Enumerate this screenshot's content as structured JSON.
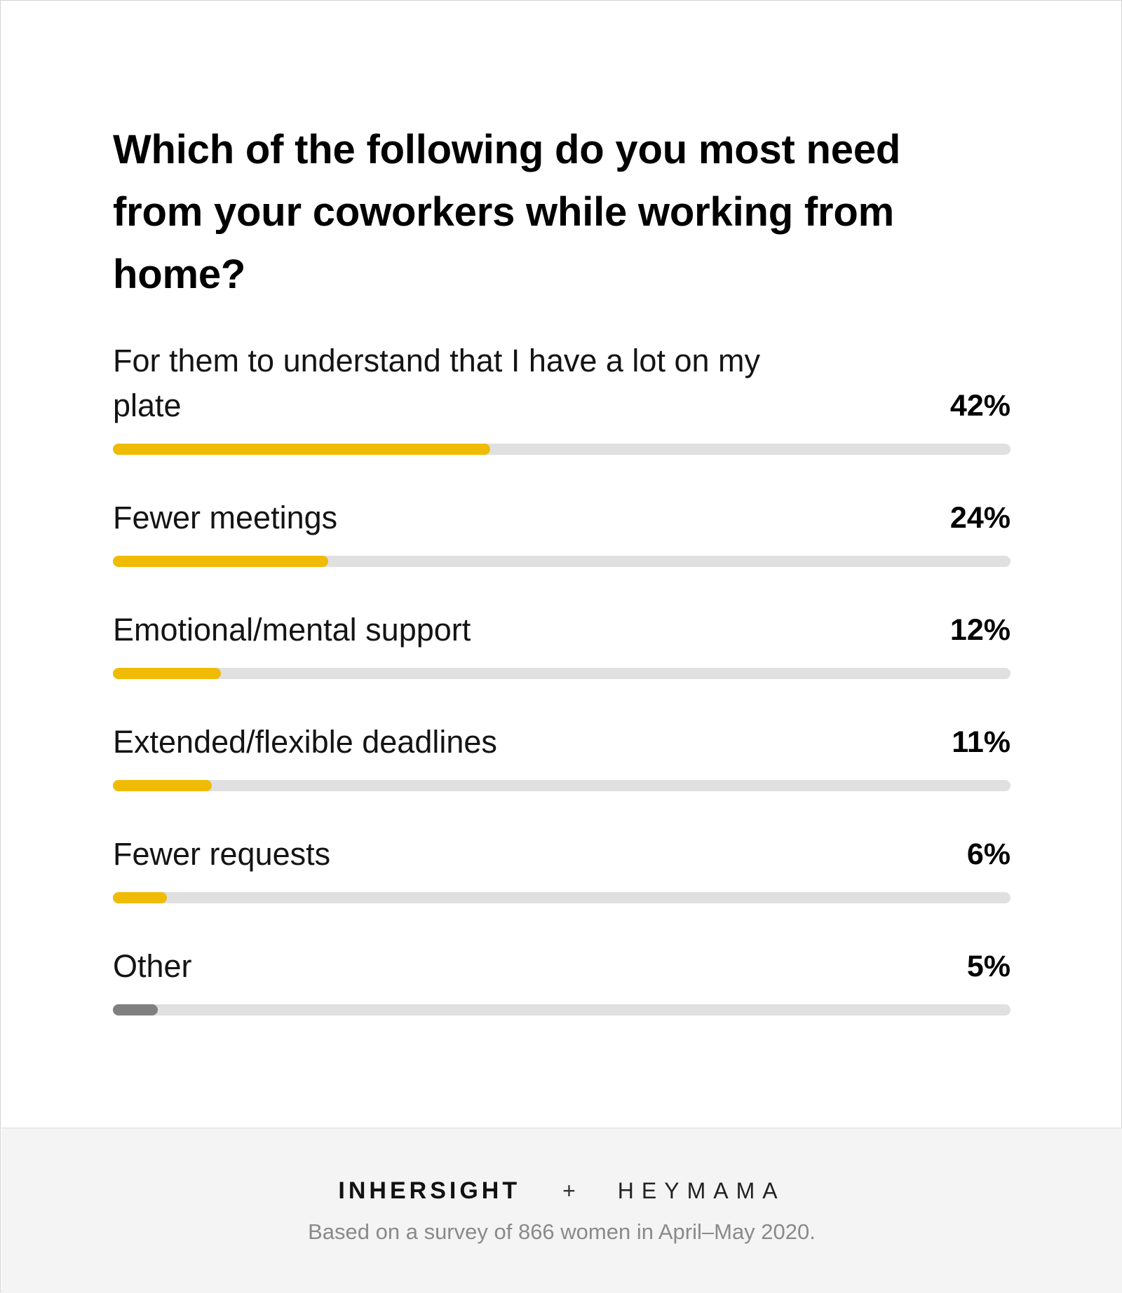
{
  "chart_data": {
    "type": "bar",
    "title": "Which of the following do you most need from your coworkers while working from home?",
    "categories": [
      "For them to understand that I have a lot on my plate",
      "Fewer meetings",
      "Emotional/mental support",
      "Extended/flexible deadlines",
      "Fewer requests",
      "Other"
    ],
    "values": [
      42,
      24,
      12,
      11,
      6,
      5
    ],
    "value_labels": [
      "42%",
      "24%",
      "12%",
      "11%",
      "6%",
      "5%"
    ],
    "bar_colors": [
      "#f0bb05",
      "#f0bb05",
      "#f0bb05",
      "#f0bb05",
      "#f0bb05",
      "#808080"
    ],
    "track_color": "#e0e0e0",
    "xlim": [
      0,
      100
    ],
    "orientation": "horizontal",
    "grid": false
  },
  "footer": {
    "brand_left": "INHERSIGHT",
    "separator": "+",
    "brand_right": "HEYMAMA",
    "note": "Based on a survey of 866 women in April–May 2020."
  }
}
